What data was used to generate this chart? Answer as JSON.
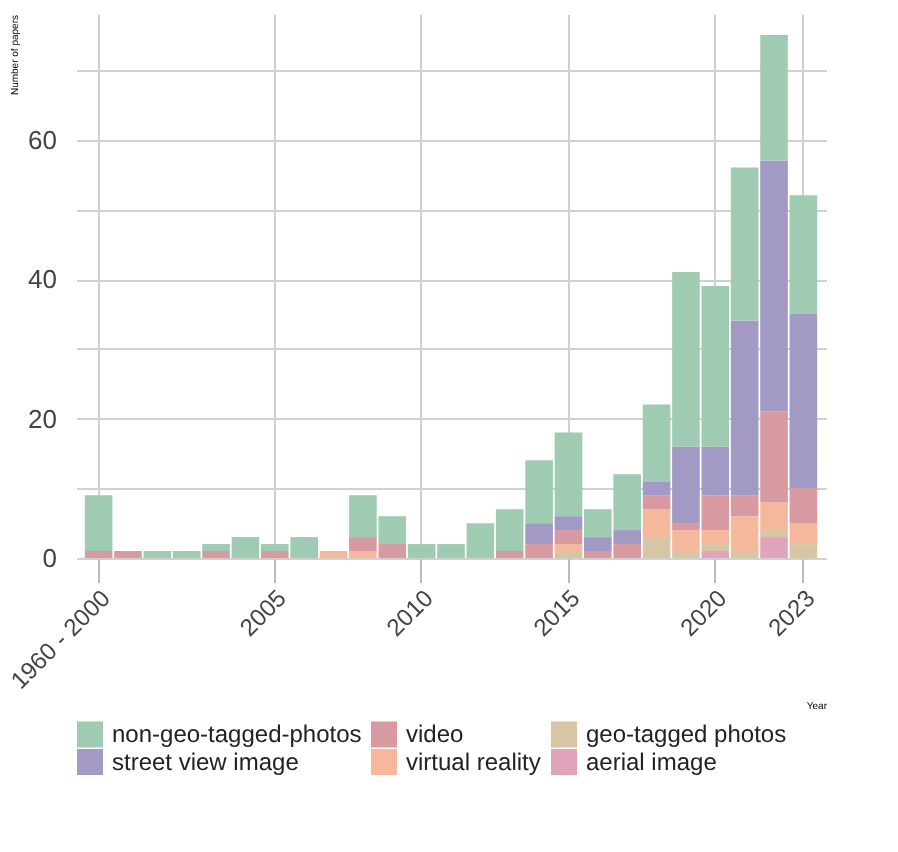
{
  "chart_data": {
    "type": "bar",
    "stacked": true,
    "xlabel": "Year",
    "ylabel": "Number of papers",
    "categories": [
      "1960 - 2000",
      null,
      null,
      null,
      null,
      null,
      "2005",
      null,
      null,
      null,
      null,
      "2010",
      null,
      null,
      null,
      null,
      "2015",
      null,
      null,
      null,
      null,
      "2020",
      null,
      null,
      "2023"
    ],
    "series": [
      {
        "name": "aerial image",
        "color": "#e0a4bc",
        "values": [
          0,
          0,
          0,
          0,
          0,
          0,
          0,
          0,
          0,
          0,
          0,
          0,
          0,
          0,
          0,
          0,
          0,
          0,
          0,
          0,
          0,
          1,
          0,
          3,
          0
        ]
      },
      {
        "name": "geo-tagged photos",
        "color": "#d6c6a4",
        "values": [
          0,
          0,
          0,
          0,
          0,
          0,
          0,
          0,
          0,
          0,
          0,
          0,
          0,
          0,
          0,
          0,
          1,
          0,
          0,
          3,
          1,
          1,
          1,
          1,
          2
        ]
      },
      {
        "name": "virtual reality",
        "color": "#f5b89c",
        "values": [
          0,
          0,
          0,
          0,
          0,
          0,
          0,
          0,
          1,
          1,
          0,
          0,
          0,
          0,
          0,
          0,
          1,
          0,
          0,
          4,
          3,
          2,
          5,
          4,
          3
        ]
      },
      {
        "name": "video",
        "color": "#d79aa0",
        "values": [
          1,
          1,
          0,
          0,
          1,
          0,
          1,
          0,
          0,
          2,
          2,
          0,
          0,
          0,
          1,
          2,
          2,
          1,
          2,
          2,
          1,
          5,
          3,
          13,
          5
        ]
      },
      {
        "name": "street view image",
        "color": "#a29ac4",
        "values": [
          0,
          0,
          0,
          0,
          0,
          0,
          0,
          0,
          0,
          0,
          0,
          0,
          0,
          0,
          0,
          3,
          2,
          2,
          2,
          2,
          11,
          7,
          25,
          36,
          25
        ]
      },
      {
        "name": "non-geo-tagged-photos",
        "color": "#9fcbb3",
        "values": [
          8,
          0,
          1,
          1,
          1,
          3,
          1,
          3,
          0,
          6,
          4,
          2,
          2,
          5,
          6,
          9,
          12,
          4,
          8,
          11,
          25,
          23,
          22,
          18,
          17
        ]
      }
    ],
    "ylim": [
      0,
      78
    ],
    "yticks": [
      0,
      {
        "value": 10,
        "label": null
      },
      20,
      {
        "value": 30,
        "label": null
      },
      40,
      {
        "value": 50,
        "label": null
      },
      60,
      {
        "value": 70,
        "label": null
      }
    ],
    "grid": true,
    "legend": "bottom"
  }
}
